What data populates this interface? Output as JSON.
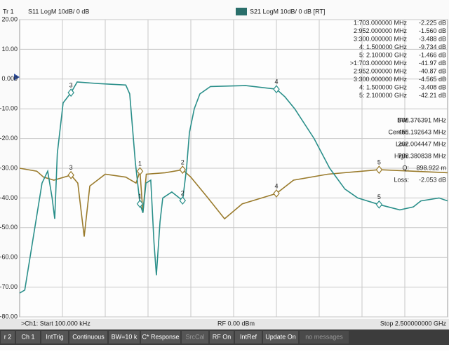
{
  "header": {
    "trace": "Tr 1",
    "left_label": "S11 LogM 10dB/ 0 dB",
    "right_label": "S21 LogM 10dB/ 0 dB [RT]"
  },
  "chart_data": {
    "type": "line",
    "xlim": [
      0.0001,
      2.5
    ],
    "ylim": [
      -80,
      20
    ],
    "yticks": [
      {
        "value": 20,
        "label": "20.00"
      },
      {
        "value": 10,
        "label": "10.00"
      },
      {
        "value": 0,
        "label": "0.000"
      },
      {
        "value": -10,
        "label": "-10.00"
      },
      {
        "value": -20,
        "label": "-20.00"
      },
      {
        "value": -30,
        "label": "-30.00"
      },
      {
        "value": -40,
        "label": "-40.00"
      },
      {
        "value": -50,
        "label": "-50.00"
      },
      {
        "value": -60,
        "label": "-60.00"
      },
      {
        "value": -70,
        "label": "-70.00"
      },
      {
        "value": -80,
        "label": "-80.00"
      }
    ],
    "grid": true,
    "series": [
      {
        "name": "S11",
        "color": "#9a7b2c",
        "x": [
          0.0001,
          0.1,
          0.14,
          0.2,
          0.3,
          0.34,
          0.377,
          0.41,
          0.5,
          0.62,
          0.68,
          0.703,
          0.72,
          0.74,
          0.85,
          0.952,
          1.0,
          1.1,
          1.197,
          1.3,
          1.5,
          1.6,
          1.8,
          2.1,
          2.5
        ],
        "values": [
          -30,
          -31,
          -33,
          -34,
          -32.3,
          -35,
          -53,
          -36,
          -32,
          -33,
          -35,
          -31,
          -45,
          -32,
          -31.5,
          -30.5,
          -33,
          -40,
          -47,
          -42,
          -38.5,
          -34,
          -32,
          -30.5,
          -31.5
        ],
        "markers": [
          {
            "label": "3",
            "x": 0.3,
            "value": -32.3
          },
          {
            "label": "1",
            "x": 0.703,
            "value": -31
          },
          {
            "label": "2",
            "x": 0.952,
            "value": -30.5
          },
          {
            "label": "4",
            "x": 1.5,
            "value": -38.5
          },
          {
            "label": "5",
            "x": 2.1,
            "value": -30.5
          }
        ]
      },
      {
        "name": "S21",
        "color": "#2a8f8a",
        "x": [
          0.0001,
          0.03,
          0.131,
          0.164,
          0.19,
          0.205,
          0.22,
          0.254,
          0.3,
          0.336,
          0.459,
          0.62,
          0.643,
          0.676,
          0.703,
          0.72,
          0.738,
          0.766,
          0.785,
          0.799,
          0.82,
          0.836,
          0.889,
          0.952,
          0.975,
          0.992,
          1.02,
          1.053,
          1.115,
          1.32,
          1.5,
          1.55,
          1.607,
          1.72,
          1.811,
          1.9,
          1.975,
          2.1,
          2.221,
          2.3,
          2.344,
          2.45,
          2.5
        ],
        "values": [
          -72,
          -71,
          -35,
          -31,
          -40,
          -47,
          -25,
          -8,
          -4.565,
          -1,
          -1.5,
          -2,
          -5,
          -28,
          -41.97,
          -45,
          -35,
          -34,
          -55,
          -66,
          -48,
          -40,
          -38,
          -40.87,
          -30,
          -18,
          -10,
          -5,
          -2.5,
          -2.2,
          -3.408,
          -6,
          -10,
          -20,
          -30,
          -37,
          -40,
          -42.21,
          -44,
          -43,
          -41,
          -40,
          -41
        ],
        "markers": [
          {
            "label": "3",
            "x": 0.3,
            "value": -4.565
          },
          {
            "label": "1",
            "x": 0.703,
            "value": -41.97
          },
          {
            "label": "2",
            "x": 0.952,
            "value": -40.87
          },
          {
            "label": "4",
            "x": 1.5,
            "value": -3.408
          },
          {
            "label": "5",
            "x": 2.1,
            "value": -42.21
          }
        ]
      }
    ]
  },
  "marker_table": [
    [
      "1:703.000000 MHz",
      "-2.225 dB"
    ],
    [
      "2:952.000000 MHz",
      "-1.560 dB"
    ],
    [
      "3:300.000000 MHz",
      "-3.488 dB"
    ],
    [
      "4:   1.500000 GHz",
      "-9.734 dB"
    ],
    [
      "5:   2.100000 GHz",
      "-1.466 dB"
    ],
    [
      ">1:703.000000 MHz",
      "-41.97 dB"
    ],
    [
      "2:952.000000 MHz",
      "-40.87 dB"
    ],
    [
      "3:300.000000 MHz",
      "-4.565 dB"
    ],
    [
      "4:   1.500000 GHz",
      "-3.408 dB"
    ],
    [
      "5:   2.100000 GHz",
      "-42.21 dB"
    ]
  ],
  "stats": [
    [
      "BW:",
      "506.376391 MHz"
    ],
    [
      "Center:",
      "455.192643 MHz"
    ],
    [
      "Low:",
      "202.004447 MHz"
    ],
    [
      "High:",
      "708.380838 MHz"
    ],
    [
      "Q:",
      "898.922 m"
    ],
    [
      "Loss:",
      "-2.053 dB"
    ]
  ],
  "status": {
    "start": ">Ch1: Start 100.000 kHz",
    "power": "RF 0.00 dBm",
    "stop": "Stop 2.500000000 GHz"
  },
  "toolbar": [
    "r 2",
    "Ch 1",
    "IntTrig",
    "Continuous",
    "BW=10 k",
    "C* Response",
    "SrcCal",
    "RF On",
    "IntRef",
    "Update On",
    "no messages"
  ]
}
